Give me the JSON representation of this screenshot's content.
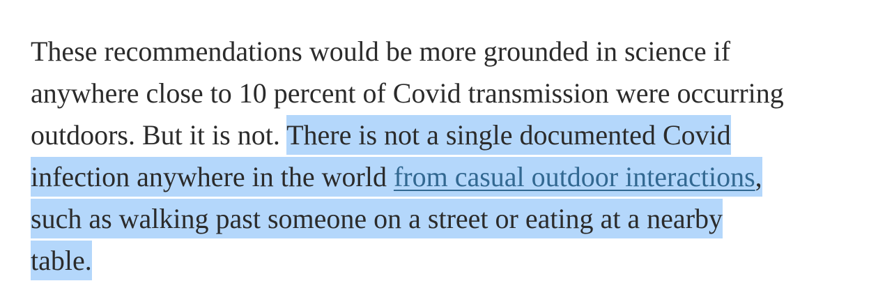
{
  "article": {
    "paragraph": {
      "line1": "These recommendations would be more grounded in science if",
      "line2": "anywhere close to 10 percent of Covid transmission were occurring",
      "line3_plain": "outdoors. But it is not. ",
      "line3_selected": "There is not a single documented Covid",
      "line4_selected_before_link": "infection anywhere in the world ",
      "link_text": "from casual outdoor interactions",
      "line4_selected_after_link": ",",
      "line5_selected": "such as walking past someone on a street or eating at a nearby",
      "line6_selected": "table."
    },
    "colors": {
      "text": "#2b2b2b",
      "link": "#326891",
      "selection": "#b4d7fb"
    }
  }
}
